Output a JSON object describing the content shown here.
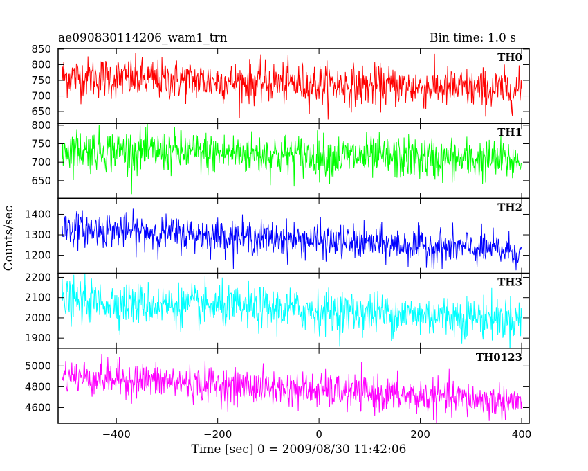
{
  "header": {
    "title": "ae090830114206_wam1_trn",
    "bin_time": "Bin time: 1.0 s"
  },
  "chart_data": {
    "type": "line",
    "xlabel": "Time [sec] 0 = 2009/08/30 11:42:06",
    "ylabel": "Counts/sec",
    "xlim": [
      -515,
      415
    ],
    "x_ticks": [
      -400,
      -200,
      0,
      200,
      400
    ],
    "x_range": [
      -507,
      400
    ],
    "bin": 1,
    "panels": [
      {
        "name": "TH0",
        "color": "#ff0000",
        "ylim": [
          612,
          852
        ],
        "yticks": [
          650,
          700,
          750,
          800,
          850
        ],
        "trend": {
          "start": 762,
          "end": 718
        },
        "noise_sd": 33
      },
      {
        "name": "TH1",
        "color": "#00ff00",
        "ylim": [
          602,
          805
        ],
        "yticks": [
          650,
          700,
          750,
          800
        ],
        "trend": {
          "start": 735,
          "end": 703
        },
        "noise_sd": 29
      },
      {
        "name": "TH2",
        "color": "#0000ff",
        "ylim": [
          1112,
          1478
        ],
        "yticks": [
          1200,
          1300,
          1400
        ],
        "trend": {
          "start": 1335,
          "end": 1220
        },
        "noise_sd": 42
      },
      {
        "name": "TH3",
        "color": "#00ffff",
        "ylim": [
          1850,
          2220
        ],
        "yticks": [
          1900,
          2000,
          2100,
          2200
        ],
        "trend": {
          "start": 2085,
          "end": 1995
        },
        "noise_sd": 52
      },
      {
        "name": "TH0123",
        "color": "#ff00ff",
        "ylim": [
          4450,
          5170
        ],
        "yticks": [
          4600,
          4800,
          5000
        ],
        "trend": {
          "start": 4905,
          "end": 4650
        },
        "noise_sd": 85
      }
    ]
  }
}
